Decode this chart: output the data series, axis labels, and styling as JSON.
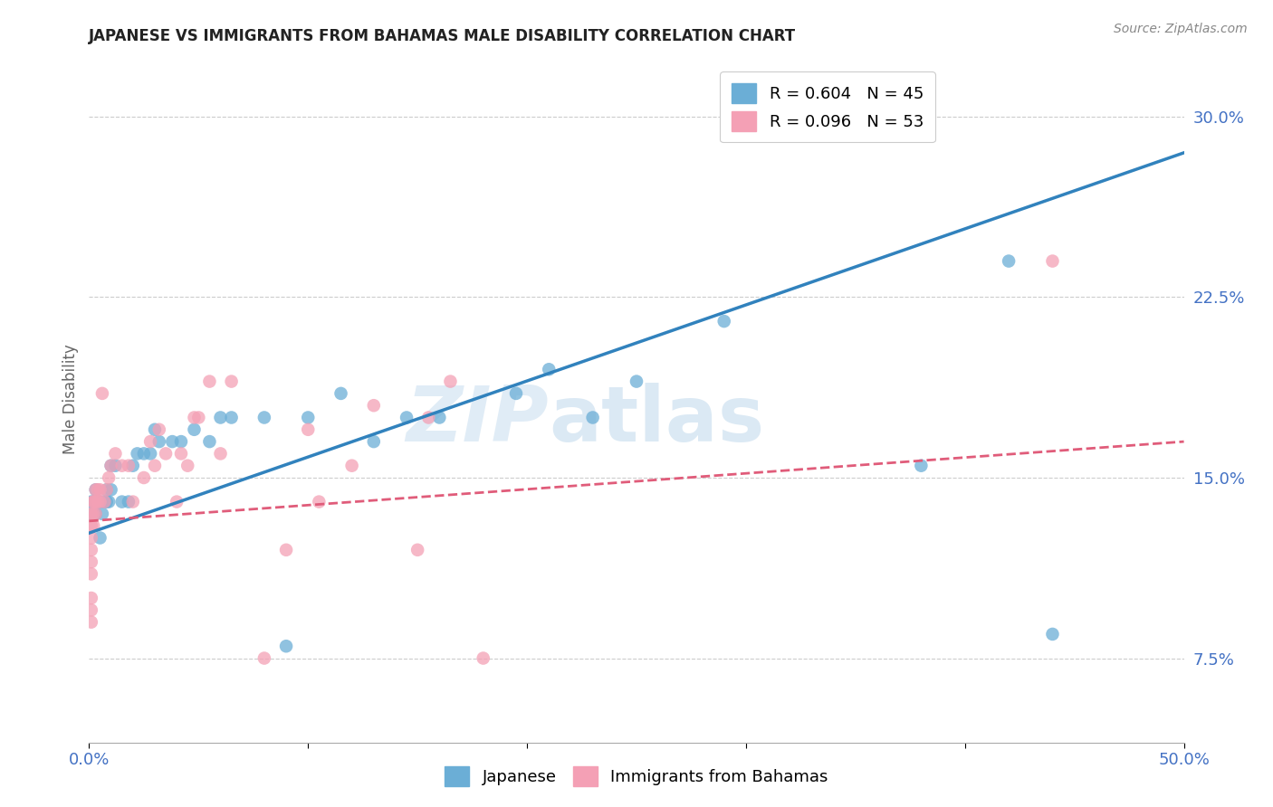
{
  "title": "JAPANESE VS IMMIGRANTS FROM BAHAMAS MALE DISABILITY CORRELATION CHART",
  "source": "Source: ZipAtlas.com",
  "ylabel": "Male Disability",
  "x_min": 0.0,
  "x_max": 0.5,
  "y_min": 0.04,
  "y_max": 0.325,
  "y_ticks": [
    0.075,
    0.15,
    0.225,
    0.3
  ],
  "y_tick_labels": [
    "7.5%",
    "15.0%",
    "22.5%",
    "30.0%"
  ],
  "legend_r1": "R = 0.604",
  "legend_n1": "N = 45",
  "legend_r2": "R = 0.096",
  "legend_n2": "N = 53",
  "color_blue": "#6baed6",
  "color_pink": "#f4a0b5",
  "color_line_blue": "#3182bd",
  "color_line_pink": "#e05c7a",
  "watermark_zip": "ZIP",
  "watermark_atlas": "atlas",
  "japanese_x": [
    0.001,
    0.001,
    0.002,
    0.003,
    0.003,
    0.004,
    0.005,
    0.005,
    0.006,
    0.007,
    0.008,
    0.008,
    0.009,
    0.01,
    0.01,
    0.012,
    0.015,
    0.018,
    0.02,
    0.022,
    0.025,
    0.028,
    0.03,
    0.032,
    0.038,
    0.042,
    0.048,
    0.055,
    0.06,
    0.065,
    0.08,
    0.09,
    0.1,
    0.115,
    0.13,
    0.145,
    0.16,
    0.195,
    0.21,
    0.23,
    0.25,
    0.29,
    0.38,
    0.42,
    0.44
  ],
  "japanese_y": [
    0.135,
    0.14,
    0.14,
    0.135,
    0.145,
    0.14,
    0.125,
    0.14,
    0.135,
    0.14,
    0.14,
    0.145,
    0.14,
    0.145,
    0.155,
    0.155,
    0.14,
    0.14,
    0.155,
    0.16,
    0.16,
    0.16,
    0.17,
    0.165,
    0.165,
    0.165,
    0.17,
    0.165,
    0.175,
    0.175,
    0.175,
    0.08,
    0.175,
    0.185,
    0.165,
    0.175,
    0.175,
    0.185,
    0.195,
    0.175,
    0.19,
    0.215,
    0.155,
    0.24,
    0.085
  ],
  "bahamas_x": [
    0.001,
    0.001,
    0.001,
    0.001,
    0.001,
    0.001,
    0.001,
    0.001,
    0.001,
    0.002,
    0.002,
    0.002,
    0.002,
    0.003,
    0.003,
    0.003,
    0.004,
    0.004,
    0.005,
    0.005,
    0.006,
    0.007,
    0.008,
    0.009,
    0.01,
    0.012,
    0.015,
    0.018,
    0.02,
    0.025,
    0.028,
    0.03,
    0.032,
    0.035,
    0.04,
    0.042,
    0.045,
    0.048,
    0.05,
    0.055,
    0.06,
    0.065,
    0.08,
    0.09,
    0.1,
    0.105,
    0.12,
    0.13,
    0.15,
    0.155,
    0.165,
    0.18,
    0.44
  ],
  "bahamas_y": [
    0.09,
    0.095,
    0.1,
    0.11,
    0.115,
    0.12,
    0.125,
    0.13,
    0.135,
    0.13,
    0.135,
    0.14,
    0.14,
    0.135,
    0.14,
    0.145,
    0.14,
    0.145,
    0.14,
    0.145,
    0.185,
    0.14,
    0.145,
    0.15,
    0.155,
    0.16,
    0.155,
    0.155,
    0.14,
    0.15,
    0.165,
    0.155,
    0.17,
    0.16,
    0.14,
    0.16,
    0.155,
    0.175,
    0.175,
    0.19,
    0.16,
    0.19,
    0.075,
    0.12,
    0.17,
    0.14,
    0.155,
    0.18,
    0.12,
    0.175,
    0.19,
    0.075,
    0.24
  ],
  "blue_line_x": [
    0.0,
    0.5
  ],
  "blue_line_y": [
    0.127,
    0.285
  ],
  "pink_line_x": [
    0.0,
    0.5
  ],
  "pink_line_y": [
    0.132,
    0.165
  ]
}
